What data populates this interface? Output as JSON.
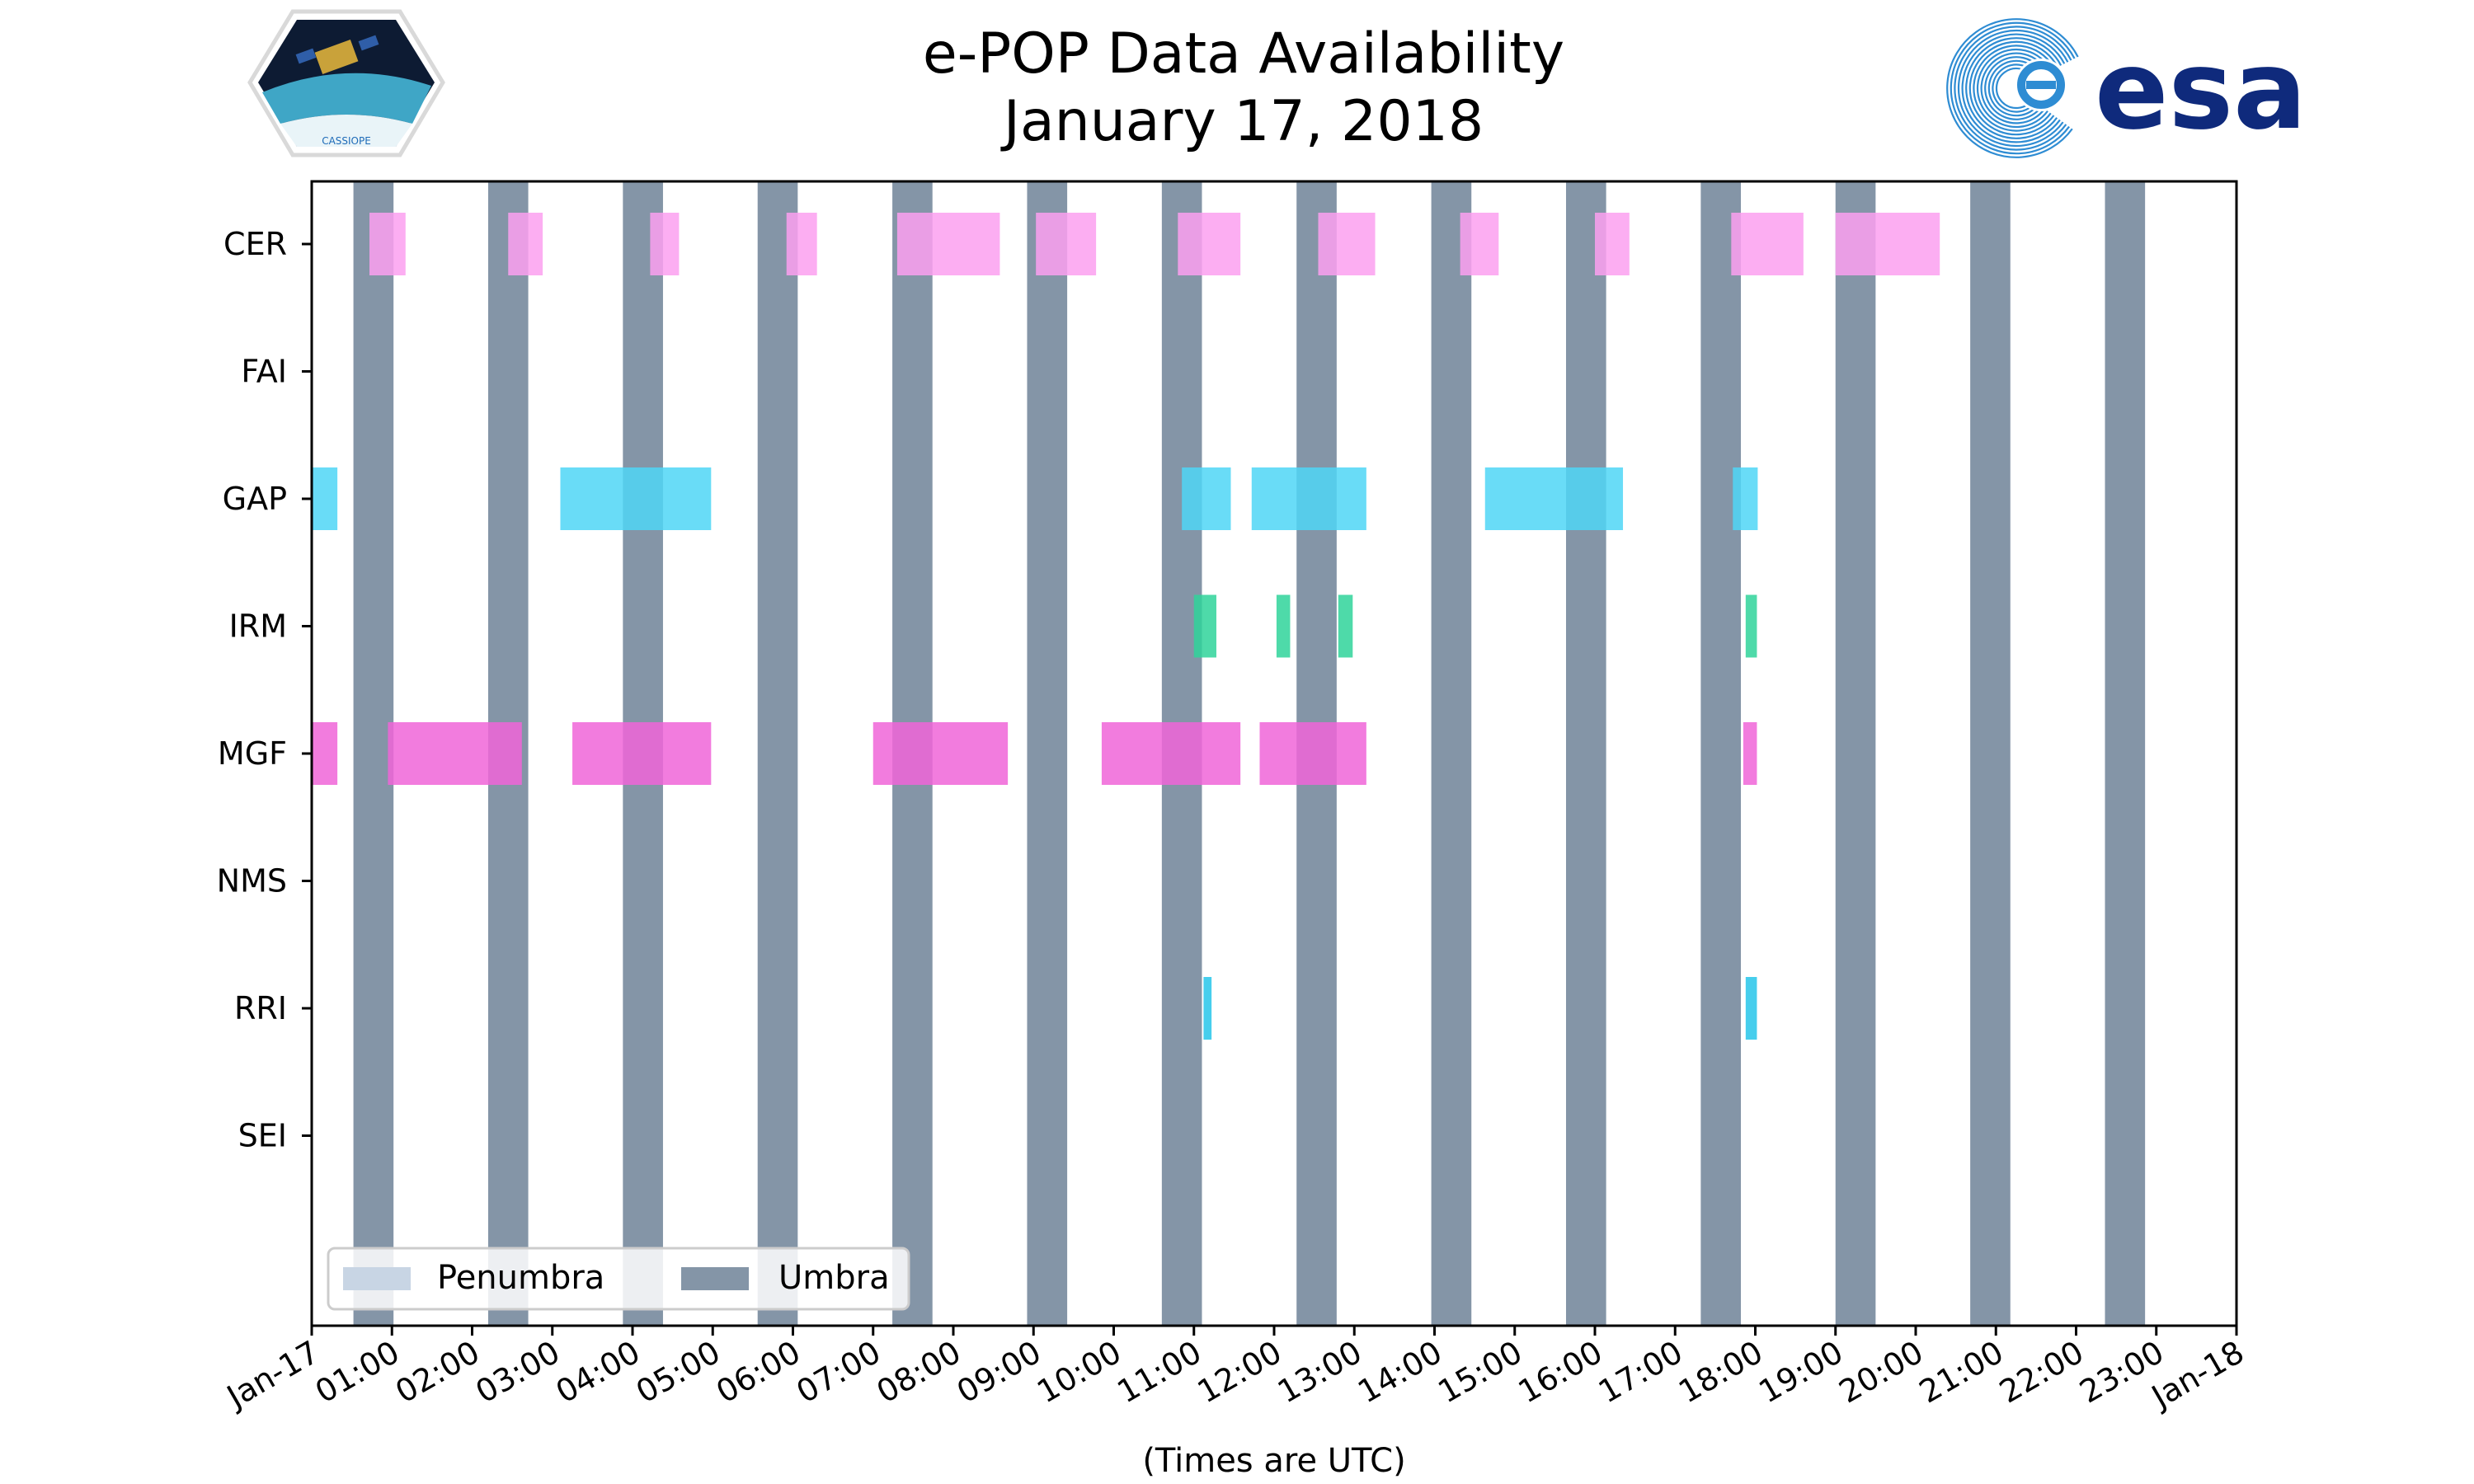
{
  "colors": {
    "umbra": "#8495a7",
    "penumbra": "#c8d5e4",
    "cer": "#fca0f0",
    "gap": "#4fd6f6",
    "irm": "#2fd39a",
    "mgf": "#f065d8",
    "rri": "#26c6ea",
    "esa_blue": "#0f2a7c",
    "logo_blue": "#2e8cd3"
  },
  "logos": {
    "left_caption": "CASSIOPE",
    "right_text": "esa"
  },
  "chart_data": {
    "type": "timeline",
    "title": "e-POP Data Availability",
    "subtitle": "January 17, 2018",
    "xlabel": "(Times are UTC)",
    "x_range_hours": [
      0,
      24
    ],
    "x_tick_hours": [
      0,
      1,
      2,
      3,
      4,
      5,
      6,
      7,
      8,
      9,
      10,
      11,
      12,
      13,
      14,
      15,
      16,
      17,
      18,
      19,
      20,
      21,
      22,
      23,
      24
    ],
    "x_tick_labels": [
      "Jan-17",
      "01:00",
      "02:00",
      "03:00",
      "04:00",
      "05:00",
      "06:00",
      "07:00",
      "08:00",
      "09:00",
      "10:00",
      "11:00",
      "12:00",
      "13:00",
      "14:00",
      "15:00",
      "16:00",
      "17:00",
      "18:00",
      "19:00",
      "20:00",
      "21:00",
      "22:00",
      "23:00",
      "Jan-18"
    ],
    "instruments": [
      "CER",
      "FAI",
      "GAP",
      "IRM",
      "MGF",
      "NMS",
      "RRI",
      "SEI"
    ],
    "umbra": [
      [
        0.52,
        1.02
      ],
      [
        2.2,
        2.7
      ],
      [
        3.88,
        4.38
      ],
      [
        5.56,
        6.06
      ],
      [
        7.24,
        7.74
      ],
      [
        8.92,
        9.42
      ],
      [
        10.6,
        11.1
      ],
      [
        12.28,
        12.78
      ],
      [
        13.96,
        14.46
      ],
      [
        15.64,
        16.14
      ],
      [
        17.32,
        17.82
      ],
      [
        19.0,
        19.5
      ],
      [
        20.68,
        21.18
      ],
      [
        22.36,
        22.86
      ]
    ],
    "penumbra": [],
    "series": [
      {
        "name": "CER",
        "color_key": "cer",
        "segments": [
          [
            0.72,
            1.17
          ],
          [
            2.45,
            2.88
          ],
          [
            4.22,
            4.58
          ],
          [
            5.92,
            6.3
          ],
          [
            7.3,
            8.58
          ],
          [
            9.03,
            9.78
          ],
          [
            10.8,
            11.58
          ],
          [
            12.55,
            13.26
          ],
          [
            14.32,
            14.8
          ],
          [
            16.0,
            16.43
          ],
          [
            17.7,
            18.6
          ],
          [
            19.0,
            20.3
          ]
        ]
      },
      {
        "name": "FAI",
        "color_key": "cer",
        "segments": []
      },
      {
        "name": "GAP",
        "color_key": "gap",
        "segments": [
          [
            0.0,
            0.32
          ],
          [
            3.1,
            4.98
          ],
          [
            10.85,
            11.46
          ],
          [
            11.72,
            13.15
          ],
          [
            14.63,
            16.35
          ],
          [
            17.72,
            18.03
          ]
        ]
      },
      {
        "name": "IRM",
        "color_key": "irm",
        "segments": [
          [
            11.0,
            11.28
          ],
          [
            12.03,
            12.2
          ],
          [
            12.8,
            12.98
          ],
          [
            17.88,
            18.02
          ]
        ]
      },
      {
        "name": "MGF",
        "color_key": "mgf",
        "segments": [
          [
            0.0,
            0.32
          ],
          [
            0.95,
            2.62
          ],
          [
            3.25,
            4.98
          ],
          [
            7.0,
            8.68
          ],
          [
            9.85,
            11.58
          ],
          [
            11.82,
            13.15
          ],
          [
            17.85,
            18.02
          ]
        ]
      },
      {
        "name": "NMS",
        "color_key": "mgf",
        "segments": []
      },
      {
        "name": "RRI",
        "color_key": "rri",
        "segments": [
          [
            11.12,
            11.22
          ],
          [
            17.88,
            18.02
          ]
        ]
      },
      {
        "name": "SEI",
        "color_key": "mgf",
        "segments": []
      }
    ],
    "legend": {
      "position": "bottom-left",
      "entries": [
        {
          "label": "Penumbra",
          "color_key": "penumbra"
        },
        {
          "label": "Umbra",
          "color_key": "umbra"
        }
      ]
    }
  }
}
